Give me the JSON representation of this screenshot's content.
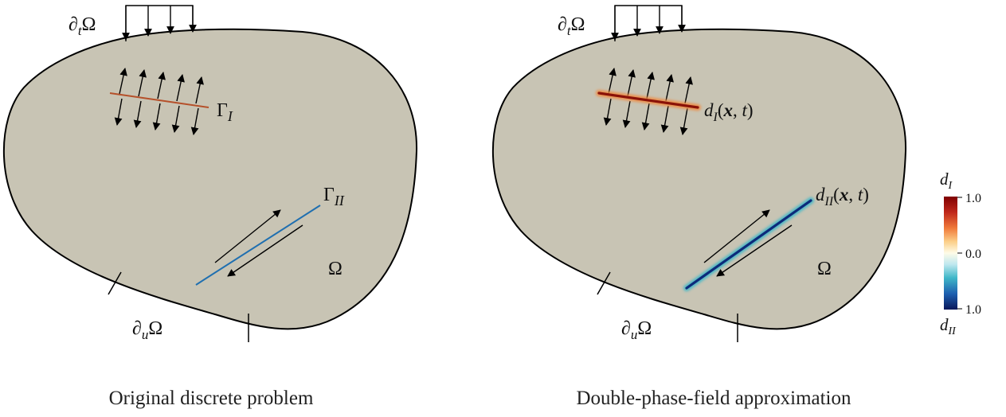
{
  "colors": {
    "domain_fill": "#c8c4b4",
    "outline": "#000000",
    "crack_I": "#b5502a",
    "crack_II": "#1f6fb0",
    "arrow": "#000000"
  },
  "left_panel": {
    "caption": "Original discrete problem",
    "labels": {
      "traction_boundary": {
        "prefix": "∂",
        "sub": "t",
        "suffix": "Ω"
      },
      "displacement_boundary": {
        "prefix": "∂",
        "sub": "u",
        "suffix": "Ω"
      },
      "domain": "Ω",
      "crack_I": {
        "base": "Γ",
        "sub": "I"
      },
      "crack_II": {
        "base": "Γ",
        "sub": "II"
      }
    }
  },
  "right_panel": {
    "caption": "Double-phase-field approximation",
    "labels": {
      "traction_boundary": {
        "prefix": "∂",
        "sub": "t",
        "suffix": "Ω"
      },
      "displacement_boundary": {
        "prefix": "∂",
        "sub": "u",
        "suffix": "Ω"
      },
      "domain": "Ω",
      "field_I": {
        "base": "d",
        "sub": "I",
        "open": "(",
        "x": "x",
        "comma": ", ",
        "t": "t",
        "close": ")"
      },
      "field_II": {
        "base": "d",
        "sub": "II",
        "open": "(",
        "x": "x",
        "comma": ", ",
        "t": "t",
        "close": ")"
      }
    }
  },
  "colorbar": {
    "top_label": {
      "base": "d",
      "sub": "I"
    },
    "bottom_label": {
      "base": "d",
      "sub": "II"
    },
    "ticks": [
      "1.0",
      "0.0",
      "1.0"
    ],
    "colormap": [
      "#7f0000",
      "#d7301f",
      "#fc8d59",
      "#fdd49e",
      "#ffffe5",
      "#c7e9f1",
      "#41b6c4",
      "#1d5fb0",
      "#081d58"
    ]
  }
}
